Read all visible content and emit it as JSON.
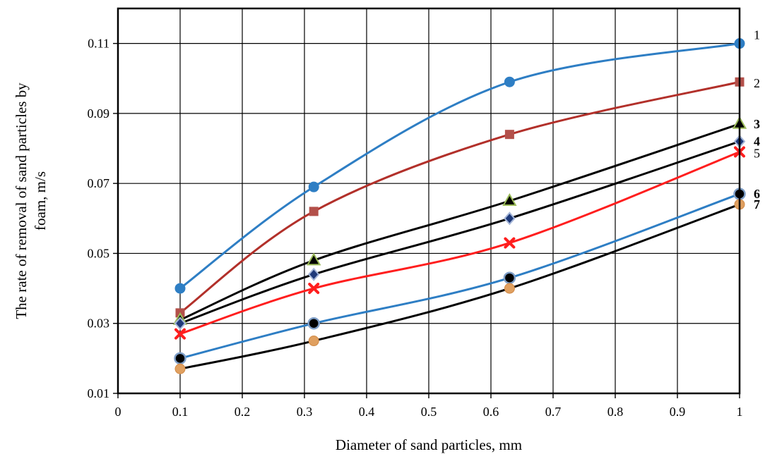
{
  "chart_data": {
    "type": "line",
    "title": "",
    "xlabel": "Diameter of sand particles,  mm",
    "ylabel_lines": [
      "The rate of removal of sand particles by",
      "foam, m/s"
    ],
    "xlim": [
      0,
      1
    ],
    "ylim": [
      0.01,
      0.12
    ],
    "xticks": [
      0,
      0.1,
      0.2,
      0.3,
      0.4,
      0.5,
      0.6,
      0.7,
      0.8,
      0.9,
      1
    ],
    "xtick_labels": [
      "0",
      "0.1",
      "0.2",
      "0.3",
      "0.4",
      "0.5",
      "0.6",
      "0.7",
      "0.8",
      "0.9",
      "1"
    ],
    "yticks": [
      0.01,
      0.03,
      0.05,
      0.07,
      0.09,
      0.11
    ],
    "ytick_labels": [
      "0.01",
      "0.03",
      "0.05",
      "0.07",
      "0.09",
      "0.11"
    ],
    "grid": true,
    "legend": "none",
    "x": [
      0.1,
      0.315,
      0.63,
      1.0
    ],
    "series": [
      {
        "label": "1",
        "label_bold": false,
        "values": [
          0.04,
          0.069,
          0.099,
          0.11
        ],
        "color": "#2e7ec4",
        "marker": "circle",
        "marker_color": "#2e7ec4",
        "marker_stroke": "#2e7ec4"
      },
      {
        "label": "2",
        "label_bold": false,
        "values": [
          0.033,
          0.062,
          0.084,
          0.099
        ],
        "color": "#b2302a",
        "marker": "square",
        "marker_color": "#b3504a",
        "marker_stroke": "#b3504a"
      },
      {
        "label": "3",
        "label_bold": true,
        "values": [
          0.031,
          0.048,
          0.065,
          0.087
        ],
        "color": "#000000",
        "marker": "triangle",
        "marker_color": "#000000",
        "marker_stroke": "#9bbb59"
      },
      {
        "label": "4",
        "label_bold": true,
        "values": [
          0.03,
          0.044,
          0.06,
          0.082
        ],
        "color": "#000000",
        "marker": "diamond",
        "marker_color": "#1f3a7a",
        "marker_stroke": "#a5b6d8"
      },
      {
        "label": "5",
        "label_bold": false,
        "values": [
          0.027,
          0.04,
          0.053,
          0.079
        ],
        "color": "#ff1e1e",
        "marker": "cross",
        "marker_color": "#ff1e1e",
        "marker_stroke": "#ff1e1e"
      },
      {
        "label": "6",
        "label_bold": true,
        "values": [
          0.02,
          0.03,
          0.043,
          0.067
        ],
        "color": "#2e7ec4",
        "marker": "ringdot",
        "marker_color": "#000000",
        "marker_stroke": "#7f9fc8"
      },
      {
        "label": "7",
        "label_bold": true,
        "values": [
          0.017,
          0.025,
          0.04,
          0.064
        ],
        "color": "#000000",
        "marker": "circle",
        "marker_color": "#e0a060",
        "marker_stroke": "#d08a48"
      }
    ]
  }
}
